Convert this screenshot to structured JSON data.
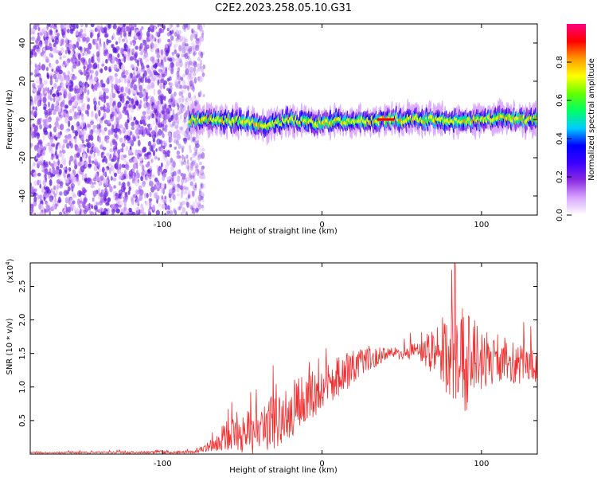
{
  "title": "C2E2.2023.258.05.10.G31",
  "chart_data": [
    {
      "type": "heatmap",
      "xlabel": "Height of straight line (km)",
      "ylabel": "Frequency (Hz)",
      "xlim": [
        -183,
        135
      ],
      "ylim": [
        -50,
        50
      ],
      "x_ticks": [
        -100,
        0,
        100
      ],
      "y_ticks": [
        -40,
        -20,
        0,
        20,
        40
      ],
      "colorbar": {
        "label": "Normalized spectral amplitude",
        "range": [
          0,
          1
        ],
        "ticks": [
          "0.0",
          "0.2",
          "0.4",
          "0.6",
          "0.8"
        ],
        "colors": [
          "#ffffff",
          "#d9a6ff",
          "#8a2be2",
          "#3a00ff",
          "#0000ff",
          "#00ccff",
          "#00ff66",
          "#66ff00",
          "#ffff00",
          "#ff9900",
          "#ff0000",
          "#ff0080"
        ]
      },
      "noise_region_km": [
        -183,
        -80
      ],
      "signal_region_km": [
        -83,
        135
      ],
      "signal_ridge": {
        "x": [
          -83,
          -70,
          -50,
          -35,
          -20,
          -5,
          10,
          25,
          40,
          55,
          70,
          85,
          100,
          115,
          135
        ],
        "y": [
          0,
          0,
          -1,
          -3,
          0,
          -2,
          -1,
          -1,
          0,
          0,
          0,
          -1,
          0,
          1,
          0
        ],
        "peak_x": [
          35,
          45
        ],
        "peak_value": 1.0
      }
    },
    {
      "type": "line",
      "xlabel": "Height of straight line (km)",
      "ylabel": "SNR (10 * v/v)",
      "y_multiplier": "(x10",
      "y_multiplier_exp": "4",
      "xlim": [
        -183,
        135
      ],
      "ylim": [
        0,
        2.85
      ],
      "x_ticks": [
        -100,
        0,
        100
      ],
      "y_ticks": [
        "0.5",
        "1.0",
        "1.5",
        "2.0",
        "2.5"
      ],
      "y_tick_values": [
        0.5,
        1.0,
        1.5,
        2.0,
        2.5
      ],
      "series": [
        {
          "color": "#f03030",
          "x": [
            -183,
            -80,
            -70,
            -60,
            -50,
            -40,
            -30,
            -20,
            -10,
            0,
            10,
            20,
            30,
            40,
            50,
            60,
            70,
            80,
            90,
            100,
            110,
            120,
            135
          ],
          "y": [
            0.02,
            0.03,
            0.12,
            0.25,
            0.32,
            0.3,
            0.5,
            0.65,
            0.85,
            0.95,
            1.15,
            1.3,
            1.42,
            1.5,
            1.5,
            1.55,
            1.52,
            1.45,
            1.42,
            1.4,
            1.38,
            1.35,
            1.3
          ],
          "spread": [
            0.01,
            0.02,
            0.08,
            0.2,
            0.3,
            0.35,
            0.45,
            0.45,
            0.35,
            0.35,
            0.3,
            0.25,
            0.2,
            0.1,
            0.1,
            0.15,
            0.35,
            0.7,
            0.8,
            0.45,
            0.3,
            0.3,
            0.25
          ]
        }
      ]
    }
  ]
}
